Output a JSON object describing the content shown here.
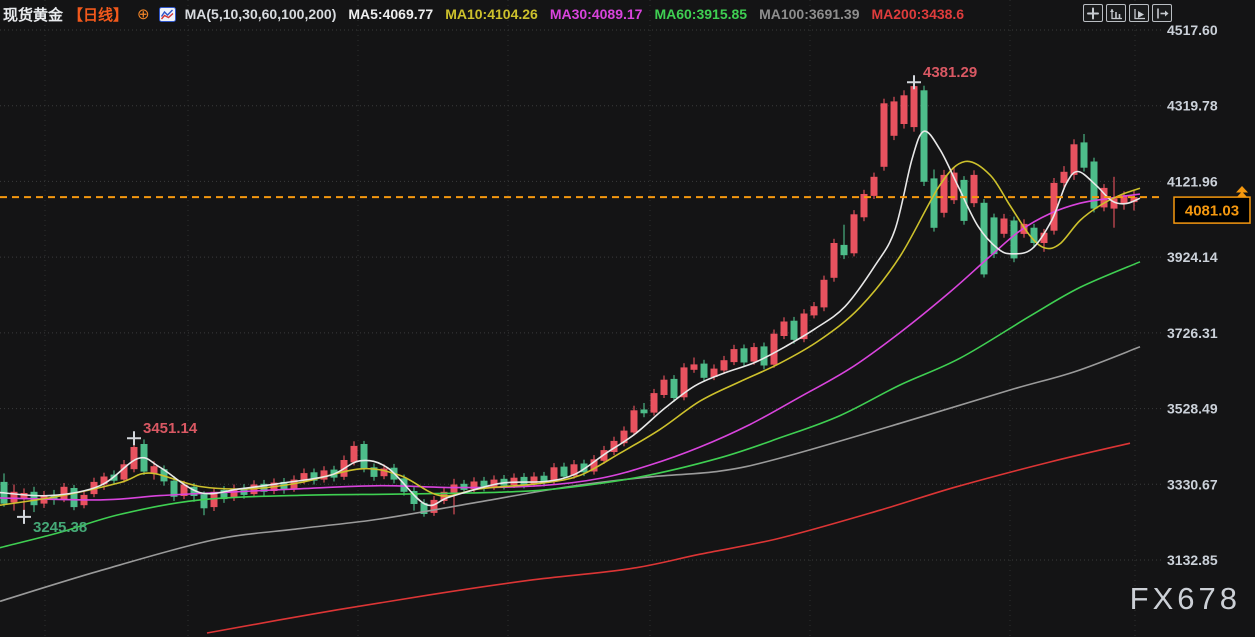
{
  "header": {
    "symbol": "现货黄金",
    "period": "【日线】",
    "expand_icon": "⊕",
    "ma_label": "MA(5,10,30,60,100,200)",
    "ma_values": [
      {
        "label": "MA5:4069.77",
        "color": "#eeeeee"
      },
      {
        "label": "MA10:4104.26",
        "color": "#cdc12c"
      },
      {
        "label": "MA30:4089.17",
        "color": "#d944dd"
      },
      {
        "label": "MA60:3915.85",
        "color": "#3fcf52"
      },
      {
        "label": "MA100:3691.39",
        "color": "#8e8e8e"
      },
      {
        "label": "MA200:3438.6",
        "color": "#df3c3c"
      }
    ],
    "toolbar_icons": [
      "pan-crosshair",
      "price-scale",
      "auto-scroll",
      "exit-chart"
    ]
  },
  "watermark": "FX678",
  "chart_data": {
    "type": "candlestick",
    "title": "现货黄金 日线 (Spot Gold Daily)",
    "legend_position": "top",
    "grid": true,
    "y_axis": {
      "side": "right",
      "ticks": [
        4517.6,
        4319.78,
        4121.96,
        3924.14,
        3726.31,
        3528.49,
        3330.67,
        3132.85
      ]
    },
    "x_gridlines": [
      45,
      188,
      358,
      508,
      650,
      810,
      1010,
      1135
    ],
    "current_price": 4081.03,
    "current_price_label": "4081.03",
    "colors": {
      "up": "#e9525f",
      "down": "#4dbd8a",
      "price": "#f5980f",
      "background": "#141415",
      "annotation_high": "#d95863",
      "annotation_low": "#45a877"
    },
    "annotations": [
      {
        "value": "4381.29",
        "candle_index": 91,
        "placement": "high",
        "color": "#d95863"
      },
      {
        "value": "3451.14",
        "candle_index": 13,
        "placement": "high",
        "color": "#d95863"
      },
      {
        "value": "3245.38",
        "candle_index": 2,
        "placement": "low",
        "color": "#45a877"
      }
    ],
    "candles": [
      [
        3337,
        3359,
        3272,
        3280
      ],
      [
        3283,
        3330,
        3262,
        3311
      ],
      [
        3294,
        3320,
        3245.38,
        3308
      ],
      [
        3311,
        3324,
        3258,
        3276
      ],
      [
        3280,
        3313,
        3269,
        3301
      ],
      [
        3303,
        3316,
        3277,
        3290
      ],
      [
        3292,
        3334,
        3284,
        3324
      ],
      [
        3321,
        3329,
        3263,
        3271
      ],
      [
        3276,
        3311,
        3268,
        3303
      ],
      [
        3305,
        3348,
        3297,
        3337
      ],
      [
        3330,
        3361,
        3316,
        3351
      ],
      [
        3356,
        3367,
        3330,
        3340
      ],
      [
        3343,
        3394,
        3335,
        3383
      ],
      [
        3370,
        3451.14,
        3362,
        3428
      ],
      [
        3436,
        3448,
        3355,
        3364
      ],
      [
        3358,
        3391,
        3343,
        3378
      ],
      [
        3370,
        3380,
        3327,
        3338
      ],
      [
        3340,
        3352,
        3287,
        3298
      ],
      [
        3300,
        3340,
        3292,
        3330
      ],
      [
        3324,
        3334,
        3285,
        3300
      ],
      [
        3305,
        3312,
        3250,
        3268
      ],
      [
        3271,
        3321,
        3261,
        3311
      ],
      [
        3316,
        3326,
        3282,
        3292
      ],
      [
        3295,
        3330,
        3287,
        3319
      ],
      [
        3321,
        3331,
        3293,
        3303
      ],
      [
        3305,
        3341,
        3297,
        3330
      ],
      [
        3332,
        3342,
        3300,
        3311
      ],
      [
        3313,
        3346,
        3305,
        3335
      ],
      [
        3337,
        3347,
        3306,
        3316
      ],
      [
        3319,
        3354,
        3311,
        3343
      ],
      [
        3340,
        3372,
        3332,
        3360
      ],
      [
        3362,
        3372,
        3330,
        3340
      ],
      [
        3343,
        3378,
        3335,
        3367
      ],
      [
        3369,
        3379,
        3338,
        3348
      ],
      [
        3350,
        3406,
        3342,
        3394
      ],
      [
        3388,
        3443,
        3380,
        3431
      ],
      [
        3436,
        3444,
        3362,
        3372
      ],
      [
        3375,
        3385,
        3340,
        3350
      ],
      [
        3352,
        3383,
        3344,
        3372
      ],
      [
        3374,
        3384,
        3333,
        3343
      ],
      [
        3346,
        3356,
        3301,
        3311
      ],
      [
        3313,
        3323,
        3262,
        3279
      ],
      [
        3282,
        3292,
        3246,
        3253
      ],
      [
        3256,
        3300,
        3248,
        3290
      ],
      [
        3287,
        3322,
        3279,
        3311
      ],
      [
        3308,
        3345,
        3252,
        3330
      ],
      [
        3332,
        3342,
        3306,
        3316
      ],
      [
        3318,
        3349,
        3310,
        3338
      ],
      [
        3340,
        3350,
        3312,
        3322
      ],
      [
        3324,
        3354,
        3316,
        3343
      ],
      [
        3345,
        3355,
        3317,
        3327
      ],
      [
        3329,
        3359,
        3321,
        3348
      ],
      [
        3350,
        3360,
        3320,
        3330
      ],
      [
        3332,
        3362,
        3324,
        3351
      ],
      [
        3353,
        3363,
        3325,
        3335
      ],
      [
        3337,
        3386,
        3329,
        3375
      ],
      [
        3377,
        3387,
        3341,
        3351
      ],
      [
        3353,
        3394,
        3345,
        3383
      ],
      [
        3385,
        3395,
        3352,
        3362
      ],
      [
        3364,
        3407,
        3356,
        3396
      ],
      [
        3392,
        3431,
        3384,
        3420
      ],
      [
        3415,
        3455,
        3407,
        3444
      ],
      [
        3438,
        3482,
        3430,
        3471
      ],
      [
        3466,
        3536,
        3458,
        3524
      ],
      [
        3526,
        3543,
        3506,
        3516
      ],
      [
        3518,
        3580,
        3510,
        3569
      ],
      [
        3564,
        3615,
        3556,
        3604
      ],
      [
        3606,
        3616,
        3546,
        3556
      ],
      [
        3558,
        3647,
        3550,
        3636
      ],
      [
        3630,
        3662,
        3622,
        3644
      ],
      [
        3646,
        3656,
        3599,
        3609
      ],
      [
        3611,
        3644,
        3603,
        3633
      ],
      [
        3628,
        3666,
        3620,
        3655
      ],
      [
        3650,
        3695,
        3642,
        3684
      ],
      [
        3686,
        3696,
        3639,
        3649
      ],
      [
        3651,
        3700,
        3643,
        3689
      ],
      [
        3691,
        3701,
        3631,
        3641
      ],
      [
        3643,
        3735,
        3635,
        3724
      ],
      [
        3718,
        3767,
        3710,
        3756
      ],
      [
        3758,
        3768,
        3698,
        3708
      ],
      [
        3710,
        3788,
        3702,
        3777
      ],
      [
        3772,
        3807,
        3764,
        3796
      ],
      [
        3793,
        3876,
        3783,
        3865
      ],
      [
        3870,
        3972,
        3860,
        3961
      ],
      [
        3956,
        4009,
        3919,
        3929
      ],
      [
        3934,
        4047,
        3926,
        4036
      ],
      [
        4028,
        4100,
        4018,
        4089
      ],
      [
        4084,
        4145,
        4076,
        4134
      ],
      [
        4160,
        4338,
        4150,
        4326
      ],
      [
        4241,
        4343,
        4230,
        4331
      ],
      [
        4272,
        4360,
        4260,
        4347
      ],
      [
        4264,
        4381.29,
        4252,
        4371
      ],
      [
        4360,
        4372,
        4110,
        4121
      ],
      [
        4130,
        4153,
        3991,
        4001
      ],
      [
        4040,
        4152,
        4028,
        4139
      ],
      [
        4073,
        4157,
        4063,
        4145
      ],
      [
        4126,
        4136,
        4009,
        4019
      ],
      [
        4065,
        4151,
        4055,
        4139
      ],
      [
        4066,
        4076,
        3871,
        3879
      ],
      [
        4028,
        4038,
        3922,
        3932
      ],
      [
        3985,
        4037,
        3975,
        4025
      ],
      [
        4020,
        4030,
        3911,
        3921
      ],
      [
        3985,
        4023,
        3975,
        4011
      ],
      [
        4001,
        4011,
        3951,
        3961
      ],
      [
        3961,
        3998,
        3938,
        3988
      ],
      [
        3993,
        4131,
        3983,
        4118
      ],
      [
        4118,
        4162,
        4100,
        4147
      ],
      [
        4139,
        4232,
        4126,
        4219
      ],
      [
        4224,
        4246,
        4148,
        4158
      ],
      [
        4174,
        4184,
        4041,
        4051
      ],
      [
        4054,
        4115,
        4044,
        4105
      ],
      [
        4051,
        4134,
        4001,
        4078
      ],
      [
        4065,
        4096,
        4048,
        4086
      ],
      [
        4068,
        4098,
        4046,
        4081.03
      ]
    ],
    "ma_lines": [
      {
        "name": "MA200",
        "color": "#dc3535",
        "points": [
          [
            207,
            2942
          ],
          [
            320,
            2995
          ],
          [
            430,
            3042
          ],
          [
            530,
            3080
          ],
          [
            630,
            3110
          ],
          [
            700,
            3148
          ],
          [
            780,
            3190
          ],
          [
            880,
            3263
          ],
          [
            955,
            3323
          ],
          [
            1050,
            3389
          ],
          [
            1130,
            3438
          ]
        ]
      },
      {
        "name": "MA100",
        "color": "#9a9a9a",
        "points": [
          [
            0,
            3025
          ],
          [
            100,
            3105
          ],
          [
            213,
            3185
          ],
          [
            300,
            3215
          ],
          [
            380,
            3240
          ],
          [
            480,
            3285
          ],
          [
            570,
            3325
          ],
          [
            650,
            3350
          ],
          [
            720,
            3365
          ],
          [
            780,
            3399
          ],
          [
            900,
            3490
          ],
          [
            1010,
            3577
          ],
          [
            1075,
            3625
          ],
          [
            1140,
            3690
          ]
        ]
      },
      {
        "name": "MA60",
        "color": "#3fcf52",
        "points": [
          [
            0,
            3165
          ],
          [
            60,
            3205
          ],
          [
            120,
            3252
          ],
          [
            200,
            3290
          ],
          [
            300,
            3302
          ],
          [
            400,
            3305
          ],
          [
            500,
            3310
          ],
          [
            560,
            3320
          ],
          [
            640,
            3350
          ],
          [
            720,
            3400
          ],
          [
            780,
            3452
          ],
          [
            840,
            3510
          ],
          [
            900,
            3590
          ],
          [
            960,
            3660
          ],
          [
            1030,
            3770
          ],
          [
            1080,
            3845
          ],
          [
            1140,
            3912
          ]
        ]
      },
      {
        "name": "MA30",
        "color": "#d944dd",
        "points": [
          [
            0,
            3295
          ],
          [
            100,
            3290
          ],
          [
            160,
            3301
          ],
          [
            220,
            3309
          ],
          [
            300,
            3319
          ],
          [
            380,
            3327
          ],
          [
            460,
            3322
          ],
          [
            540,
            3327
          ],
          [
            600,
            3346
          ],
          [
            650,
            3381
          ],
          [
            700,
            3428
          ],
          [
            750,
            3487
          ],
          [
            800,
            3559
          ],
          [
            850,
            3633
          ],
          [
            900,
            3727
          ],
          [
            950,
            3833
          ],
          [
            990,
            3926
          ],
          [
            1020,
            3993
          ],
          [
            1050,
            4038
          ],
          [
            1080,
            4065
          ],
          [
            1110,
            4078
          ],
          [
            1140,
            4089
          ]
        ]
      },
      {
        "name": "MA10",
        "color": "#cdc12c",
        "points": [
          [
            0,
            3276
          ],
          [
            60,
            3300
          ],
          [
            120,
            3335
          ],
          [
            150,
            3360
          ],
          [
            200,
            3325
          ],
          [
            250,
            3319
          ],
          [
            300,
            3335
          ],
          [
            360,
            3371
          ],
          [
            400,
            3354
          ],
          [
            440,
            3301
          ],
          [
            480,
            3319
          ],
          [
            540,
            3333
          ],
          [
            580,
            3354
          ],
          [
            620,
            3412
          ],
          [
            660,
            3474
          ],
          [
            700,
            3548
          ],
          [
            740,
            3599
          ],
          [
            780,
            3647
          ],
          [
            820,
            3708
          ],
          [
            860,
            3793
          ],
          [
            900,
            3926
          ],
          [
            940,
            4113
          ],
          [
            965,
            4174
          ],
          [
            990,
            4139
          ],
          [
            1010,
            4059
          ],
          [
            1030,
            3980
          ],
          [
            1045,
            3948
          ],
          [
            1060,
            3959
          ],
          [
            1080,
            4020
          ],
          [
            1100,
            4059
          ],
          [
            1120,
            4086
          ],
          [
            1140,
            4104
          ]
        ]
      },
      {
        "name": "MA5",
        "color": "#e8e8e8",
        "points": [
          [
            0,
            3309
          ],
          [
            50,
            3301
          ],
          [
            100,
            3327
          ],
          [
            138,
            3398
          ],
          [
            160,
            3375
          ],
          [
            200,
            3309
          ],
          [
            240,
            3319
          ],
          [
            280,
            3333
          ],
          [
            330,
            3354
          ],
          [
            360,
            3392
          ],
          [
            388,
            3373
          ],
          [
            425,
            3279
          ],
          [
            450,
            3298
          ],
          [
            500,
            3333
          ],
          [
            545,
            3338
          ],
          [
            575,
            3357
          ],
          [
            605,
            3410
          ],
          [
            635,
            3462
          ],
          [
            665,
            3530
          ],
          [
            695,
            3588
          ],
          [
            725,
            3622
          ],
          [
            755,
            3649
          ],
          [
            785,
            3690
          ],
          [
            815,
            3737
          ],
          [
            845,
            3795
          ],
          [
            875,
            3902
          ],
          [
            895,
            3996
          ],
          [
            912,
            4180
          ],
          [
            924,
            4253
          ],
          [
            940,
            4205
          ],
          [
            958,
            4110
          ],
          [
            978,
            4005
          ],
          [
            998,
            3946
          ],
          [
            1012,
            3933
          ],
          [
            1032,
            3946
          ],
          [
            1052,
            4022
          ],
          [
            1066,
            4115
          ],
          [
            1078,
            4148
          ],
          [
            1096,
            4112
          ],
          [
            1112,
            4071
          ],
          [
            1126,
            4064
          ],
          [
            1140,
            4078
          ]
        ]
      }
    ]
  }
}
